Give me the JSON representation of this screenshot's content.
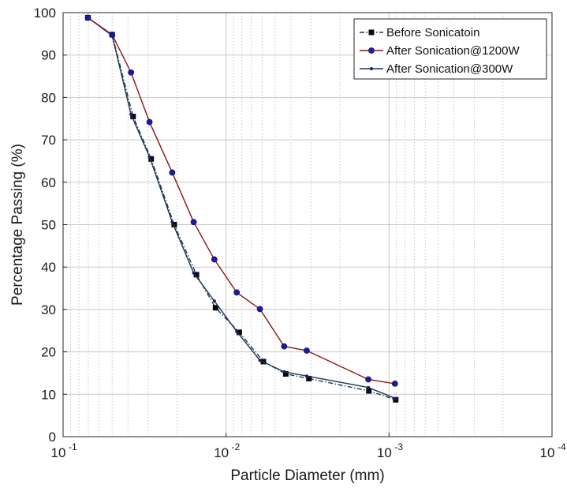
{
  "chart_data": {
    "type": "line",
    "title": "",
    "xlabel": "Particle Diameter (mm)",
    "ylabel": "Percentage Passing (%)",
    "x_scale": "log",
    "x_reversed": true,
    "xlim": [
      0.1,
      0.0001
    ],
    "ylim": [
      0,
      100
    ],
    "x_ticks": [
      {
        "value": 0.1,
        "mantissa": "10",
        "exponent": "-1"
      },
      {
        "value": 0.01,
        "mantissa": "10",
        "exponent": "-2"
      },
      {
        "value": 0.001,
        "mantissa": "10",
        "exponent": "-3"
      },
      {
        "value": 0.0001,
        "mantissa": "10",
        "exponent": "-4"
      }
    ],
    "y_ticks": [
      "0",
      "10",
      "20",
      "30",
      "40",
      "50",
      "60",
      "70",
      "80",
      "90",
      "100"
    ],
    "grid": true,
    "legend_position": "top-right",
    "series": [
      {
        "name": "Before Sonicatoin",
        "color": "#0a0a0a",
        "line_color": "#1f3a55",
        "line_style": "dashdot",
        "marker": "square",
        "points": [
          {
            "x": 0.0704,
            "y": 98.8
          },
          {
            "x": 0.05,
            "y": 94.8
          },
          {
            "x": 0.0372,
            "y": 75.5
          },
          {
            "x": 0.0288,
            "y": 65.5
          },
          {
            "x": 0.0208,
            "y": 50.0
          },
          {
            "x": 0.0152,
            "y": 38.2
          },
          {
            "x": 0.0116,
            "y": 30.4
          },
          {
            "x": 0.0083,
            "y": 24.6
          },
          {
            "x": 0.0059,
            "y": 17.7
          },
          {
            "x": 0.0043,
            "y": 14.8
          },
          {
            "x": 0.0031,
            "y": 13.7
          },
          {
            "x": 0.00133,
            "y": 10.8
          },
          {
            "x": 0.00091,
            "y": 8.7
          }
        ]
      },
      {
        "name": "After Sonication@1200W",
        "color": "#1a1aa6",
        "line_color": "#8a1414",
        "line_style": "solid",
        "marker": "circle",
        "points": [
          {
            "x": 0.0704,
            "y": 98.8
          },
          {
            "x": 0.05,
            "y": 94.8
          },
          {
            "x": 0.0383,
            "y": 85.9
          },
          {
            "x": 0.0295,
            "y": 74.2
          },
          {
            "x": 0.0214,
            "y": 62.3
          },
          {
            "x": 0.0158,
            "y": 50.6
          },
          {
            "x": 0.0118,
            "y": 41.8
          },
          {
            "x": 0.0086,
            "y": 34.0
          },
          {
            "x": 0.0062,
            "y": 30.1
          },
          {
            "x": 0.0044,
            "y": 21.3
          },
          {
            "x": 0.0032,
            "y": 20.3
          },
          {
            "x": 0.00134,
            "y": 13.5
          },
          {
            "x": 0.00092,
            "y": 12.5
          }
        ]
      },
      {
        "name": "After Sonication@300W",
        "color": "#1a1a7a",
        "line_color": "#1e3652",
        "line_style": "solid",
        "marker": "dot",
        "points": [
          {
            "x": 0.0704,
            "y": 98.8
          },
          {
            "x": 0.05,
            "y": 94.6
          },
          {
            "x": 0.0383,
            "y": 76.0
          },
          {
            "x": 0.0295,
            "y": 66.0
          },
          {
            "x": 0.0214,
            "y": 50.6
          },
          {
            "x": 0.0158,
            "y": 38.6
          },
          {
            "x": 0.0118,
            "y": 32.0
          },
          {
            "x": 0.0086,
            "y": 24.8
          },
          {
            "x": 0.0062,
            "y": 18.0
          },
          {
            "x": 0.0044,
            "y": 15.3
          },
          {
            "x": 0.0032,
            "y": 14.3
          },
          {
            "x": 0.00134,
            "y": 11.6
          },
          {
            "x": 0.00091,
            "y": 9.0
          }
        ]
      }
    ]
  }
}
